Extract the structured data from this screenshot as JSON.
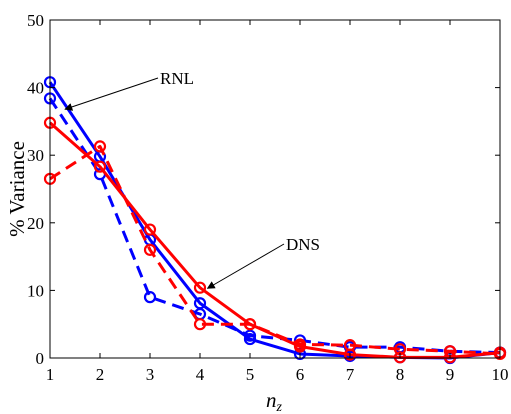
{
  "chart_data": {
    "type": "line",
    "xlabel": "n",
    "xlabel_sub": "z",
    "ylabel": "% Variance",
    "xlim": [
      1,
      10
    ],
    "ylim": [
      0,
      50
    ],
    "xticks": [
      1,
      2,
      3,
      4,
      5,
      6,
      7,
      8,
      9,
      10
    ],
    "yticks": [
      0,
      10,
      20,
      30,
      40,
      50
    ],
    "grid": false,
    "x": [
      1,
      2,
      3,
      4,
      5,
      6,
      7,
      8,
      9,
      10
    ],
    "series": [
      {
        "color": "#0000ff",
        "line_style": "solid",
        "marker": "circle",
        "values": [
          40.8,
          29.8,
          17.5,
          8.1,
          2.8,
          0.6,
          0.3,
          0.1,
          0.0,
          0.8
        ]
      },
      {
        "color": "#0000ff",
        "line_style": "dashed",
        "marker": "circle",
        "values": [
          38.4,
          27.2,
          9.0,
          6.5,
          3.3,
          2.6,
          1.6,
          1.6,
          1.0,
          0.8
        ]
      },
      {
        "color": "#ff0000",
        "line_style": "solid",
        "marker": "circle",
        "values": [
          34.8,
          28.3,
          19.0,
          10.4,
          5.0,
          1.7,
          0.5,
          0.1,
          0.1,
          0.8
        ]
      },
      {
        "color": "#ff0000",
        "line_style": "dashed",
        "marker": "circle",
        "values": [
          26.5,
          31.3,
          16.0,
          5.0,
          5.0,
          2.0,
          1.9,
          1.3,
          1.0,
          0.6
        ]
      }
    ],
    "annotations": [
      {
        "text": "RNL",
        "points_to": {
          "x": 1.3,
          "y": 36.8
        }
      },
      {
        "text": "DNS",
        "points_to": {
          "x": 4.15,
          "y": 10.3
        }
      }
    ]
  }
}
